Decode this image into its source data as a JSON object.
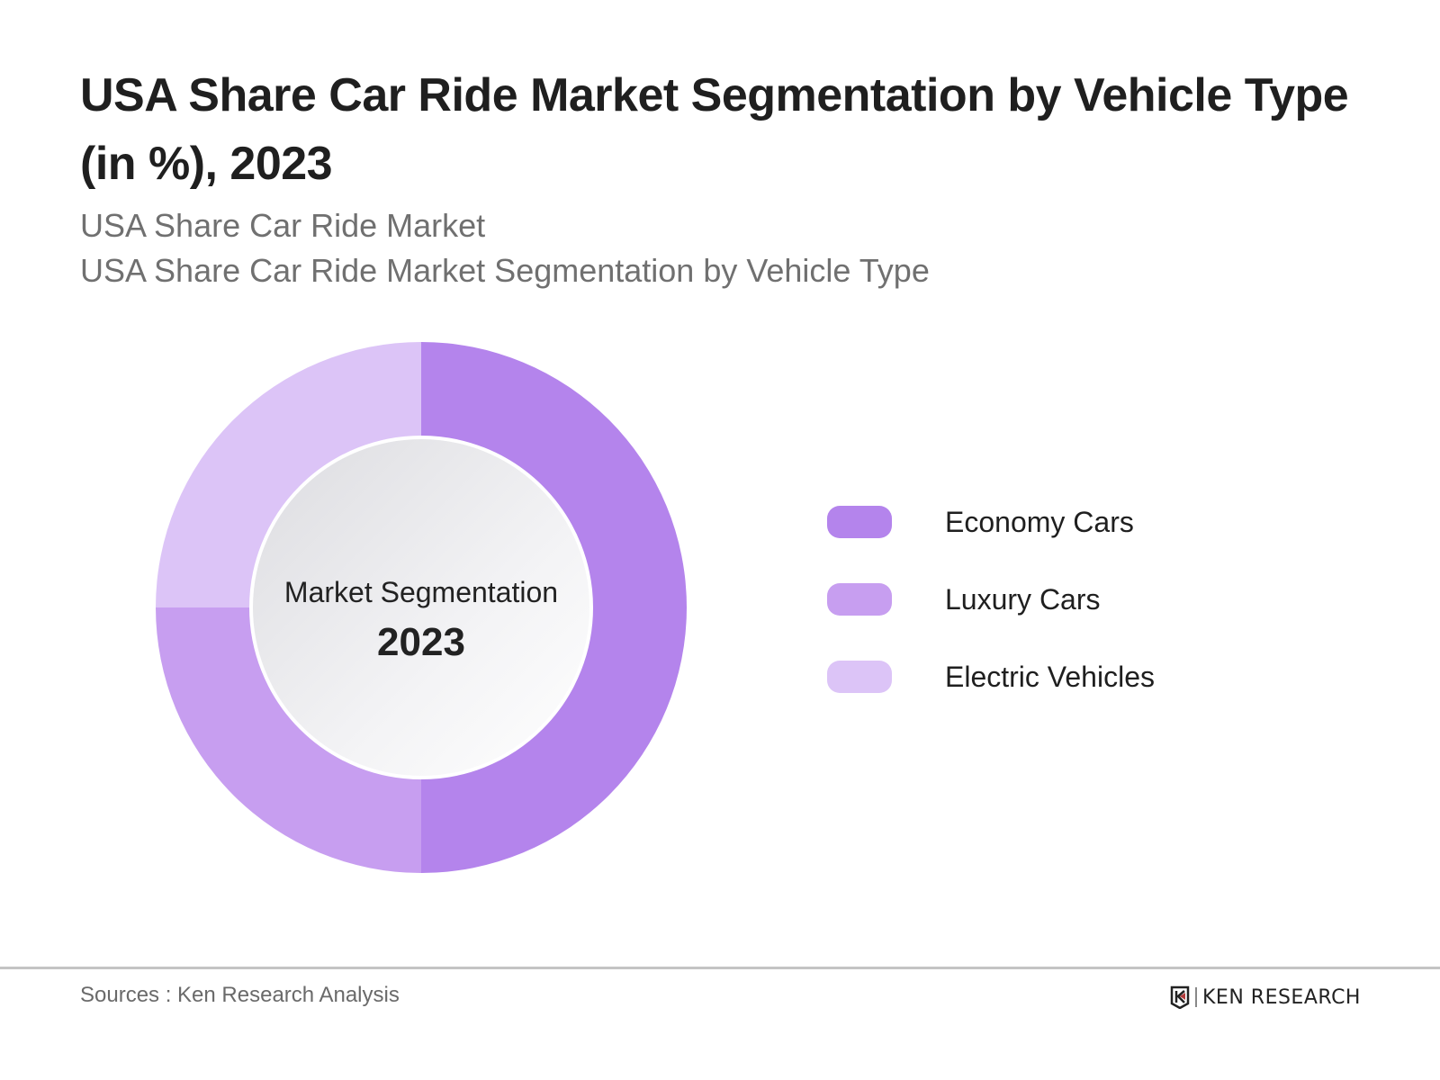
{
  "chart_data": {
    "type": "pie",
    "donut": true,
    "title": "USA Share Car Ride Market Segmentation by Vehicle Type (in %), 2023",
    "subtitles": [
      "USA Share Car Ride Market",
      "USA Share Car Ride Market Segmentation by Vehicle Type"
    ],
    "center_label": "Market Segmentation",
    "center_value": "2023",
    "categories": [
      "Economy Cars",
      "Luxury Cars",
      "Electric Vehicles"
    ],
    "values": [
      50,
      25,
      25
    ],
    "colors": [
      "#b484ec",
      "#c79ef0",
      "#dcc4f7"
    ],
    "legend_placement": "right"
  },
  "footer": {
    "source": "Sources : Ken Research Analysis",
    "logo_text": "KEN RESEARCH"
  }
}
